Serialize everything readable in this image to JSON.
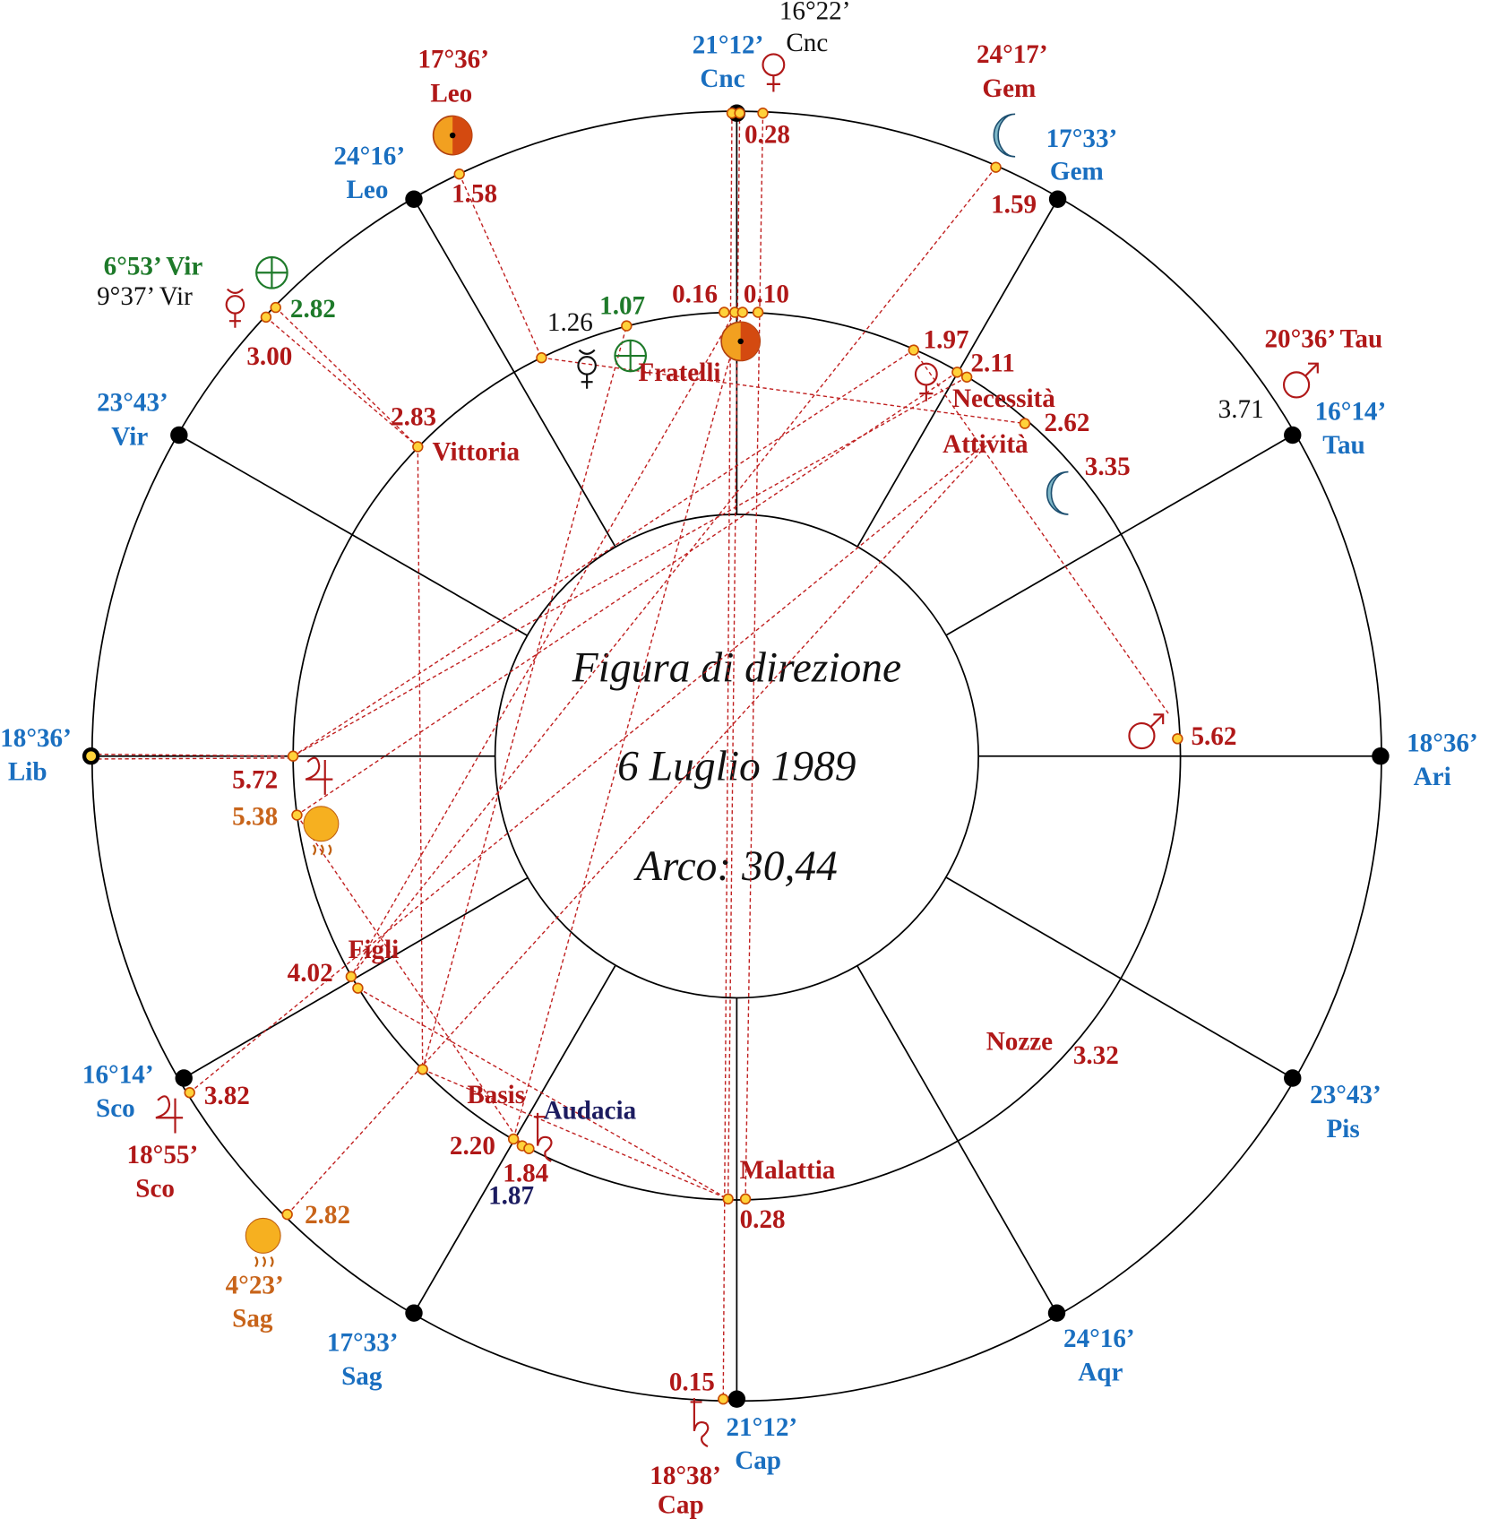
{
  "center_text": [
    "Figura di direzione",
    "6 Luglio 1989",
    "Arco: 30,44"
  ],
  "labels": [
    "21°12’",
    "Cnc",
    "17°33’",
    "Gem",
    "16°14’",
    "Tau",
    "18°36’",
    "Ari",
    "23°43’",
    "Pis",
    "24°16’",
    "Aqr",
    "21°12’",
    "Cap",
    "17°33’",
    "Sag",
    "16°14’",
    "Sco",
    "18°36’",
    "Lib",
    "23°43’",
    "Vir",
    "24°16’",
    "Leo",
    "17°36’",
    "Leo",
    "24°17’",
    "Gem",
    "20°36’ Tau",
    "18°55’",
    "Sco",
    "18°38’",
    "Cap",
    "16°22’",
    "Cnc",
    "9°37’ Vir",
    "1.26",
    "3.71",
    "6°53’ Vir",
    "2.82",
    "1.07",
    "4°23’",
    "Sag",
    "5.38",
    "2.82",
    "1.87",
    "Audacia",
    "0.28",
    "1.58",
    "1.59",
    "0.16",
    "0.10",
    "1.97",
    "2.11",
    "2.62",
    "3.35",
    "3.00",
    "2.83",
    "5.62",
    "5.72",
    "4.02",
    "3.82",
    "2.20",
    "1.84",
    "0.28",
    "3.32",
    "0.15",
    "Fratelli",
    "Necessità",
    "Attività",
    "Vittoria",
    "Figli",
    "Basis",
    "Malattia",
    "Nozze"
  ]
}
